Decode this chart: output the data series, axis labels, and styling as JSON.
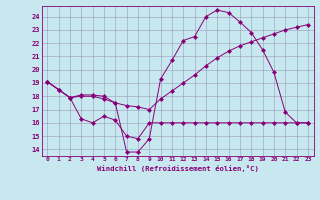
{
  "xlabel": "Windchill (Refroidissement éolien,°C)",
  "bg_color": "#c8e8f0",
  "grid_color": "#9999bb",
  "line_color": "#880077",
  "xlim": [
    -0.5,
    23.5
  ],
  "ylim": [
    13.5,
    24.8
  ],
  "yticks": [
    14,
    15,
    16,
    17,
    18,
    19,
    20,
    21,
    22,
    23,
    24
  ],
  "xticks": [
    0,
    1,
    2,
    3,
    4,
    5,
    6,
    7,
    8,
    9,
    10,
    11,
    12,
    13,
    14,
    15,
    16,
    17,
    18,
    19,
    20,
    21,
    22,
    23
  ],
  "series1_x": [
    0,
    1,
    2,
    3,
    4,
    5,
    6,
    7,
    8,
    9,
    10,
    11,
    12,
    13,
    14,
    15,
    16,
    17,
    18,
    19,
    20,
    21,
    22,
    23
  ],
  "series1_y": [
    19.1,
    18.5,
    17.9,
    18.1,
    18.1,
    18.0,
    17.5,
    13.8,
    13.8,
    14.8,
    19.3,
    20.7,
    22.2,
    22.5,
    24.0,
    24.5,
    24.3,
    23.6,
    22.8,
    21.5,
    19.8,
    16.8,
    16.0,
    16.0
  ],
  "series2_x": [
    0,
    1,
    2,
    3,
    4,
    5,
    6,
    7,
    8,
    9,
    10,
    11,
    12,
    13,
    14,
    15,
    16,
    17,
    18,
    19,
    20,
    21,
    22,
    23
  ],
  "series2_y": [
    19.1,
    18.5,
    17.9,
    16.3,
    16.0,
    16.5,
    16.2,
    15.0,
    14.8,
    16.0,
    16.0,
    16.0,
    16.0,
    16.0,
    16.0,
    16.0,
    16.0,
    16.0,
    16.0,
    16.0,
    16.0,
    16.0,
    16.0,
    16.0
  ],
  "series3_x": [
    0,
    1,
    2,
    3,
    4,
    5,
    6,
    7,
    8,
    9,
    10,
    11,
    12,
    13,
    14,
    15,
    16,
    17,
    18,
    19,
    20,
    21,
    22,
    23
  ],
  "series3_y": [
    19.1,
    18.5,
    17.9,
    18.0,
    18.0,
    17.8,
    17.5,
    17.3,
    17.2,
    17.0,
    17.8,
    18.4,
    19.0,
    19.6,
    20.3,
    20.9,
    21.4,
    21.8,
    22.1,
    22.4,
    22.7,
    23.0,
    23.2,
    23.4
  ]
}
